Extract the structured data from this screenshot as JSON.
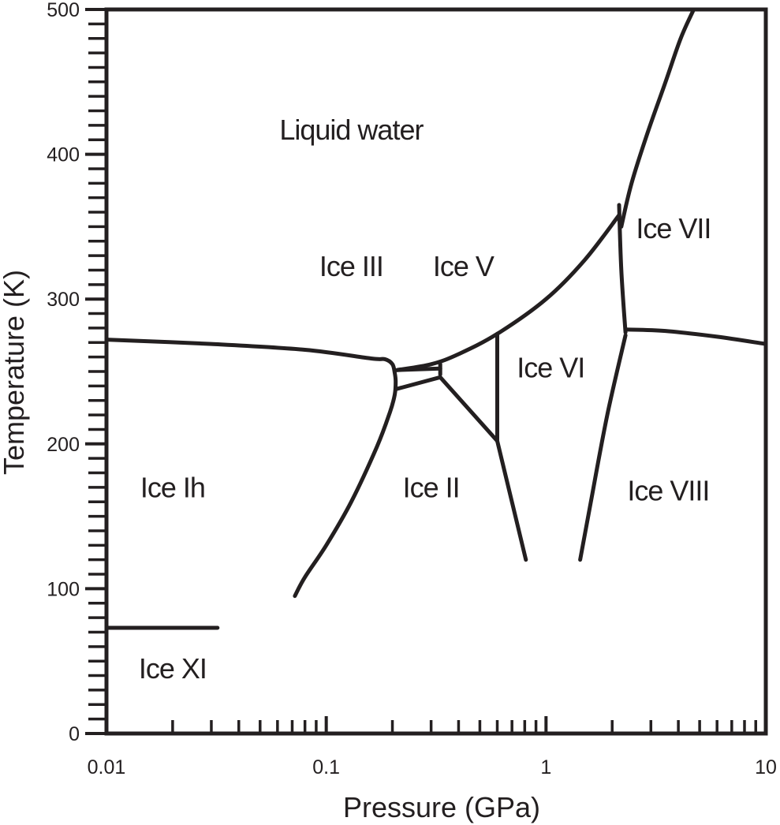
{
  "chart_data": {
    "type": "line",
    "title": "",
    "xlabel": "Pressure (GPa)",
    "ylabel": "Temperature (K)",
    "xscale": "log",
    "xlim": [
      0.01,
      10
    ],
    "ylim": [
      0,
      500
    ],
    "grid": false,
    "x_tick_labels": [
      {
        "value": 0.01,
        "label": "0.01"
      },
      {
        "value": 0.1,
        "label": "0.1"
      },
      {
        "value": 1,
        "label": "1"
      },
      {
        "value": 10,
        "label": "10"
      }
    ],
    "y_tick_labels": [
      {
        "value": 0,
        "label": "0"
      },
      {
        "value": 100,
        "label": "100"
      },
      {
        "value": 200,
        "label": "200"
      },
      {
        "value": 300,
        "label": "300"
      },
      {
        "value": 400,
        "label": "400"
      },
      {
        "value": 500,
        "label": "500"
      }
    ],
    "y_minor_step": 10,
    "regions": [
      {
        "label": "Liquid water",
        "p": 0.13,
        "t": 410
      },
      {
        "label": "Ice III",
        "p": 0.13,
        "t": 316
      },
      {
        "label": "Ice V",
        "p": 0.42,
        "t": 316
      },
      {
        "label": "Ice VII",
        "p": 3.8,
        "t": 342
      },
      {
        "label": "Ice VI",
        "p": 1.05,
        "t": 246
      },
      {
        "label": "Ice Ih",
        "p": 0.02,
        "t": 163
      },
      {
        "label": "Ice II",
        "p": 0.3,
        "t": 163
      },
      {
        "label": "Ice VIII",
        "p": 3.6,
        "t": 161
      },
      {
        "label": "Ice XI",
        "p": 0.02,
        "t": 38
      }
    ],
    "boundaries": [
      {
        "name": "Ih-liquid",
        "points": [
          [
            0.01,
            272
          ],
          [
            0.03,
            269
          ],
          [
            0.08,
            265
          ],
          [
            0.16,
            259
          ],
          [
            0.185,
            258.5
          ],
          [
            0.2,
            255
          ],
          [
            0.205,
            249
          ],
          [
            0.207,
            243
          ],
          [
            0.205,
            234
          ],
          [
            0.195,
            222
          ],
          [
            0.17,
            198
          ],
          [
            0.13,
            160
          ],
          [
            0.1,
            130
          ],
          [
            0.08,
            108
          ],
          [
            0.072,
            95
          ]
        ]
      },
      {
        "name": "liquid-III-V-VI-VII",
        "points": [
          [
            0.21,
            251
          ],
          [
            0.3,
            255
          ],
          [
            0.4,
            262
          ],
          [
            0.6,
            276
          ],
          [
            1.0,
            300
          ],
          [
            1.5,
            327
          ],
          [
            2.15,
            358
          ]
        ]
      },
      {
        "name": "VII-liquid",
        "points": [
          [
            2.2,
            350
          ],
          [
            2.45,
            380
          ],
          [
            2.9,
            415
          ],
          [
            3.5,
            450
          ],
          [
            4.1,
            480
          ],
          [
            4.7,
            500
          ]
        ]
      },
      {
        "name": "VI-VII",
        "points": [
          [
            2.15,
            365
          ],
          [
            2.2,
            320
          ],
          [
            2.3,
            277
          ]
        ]
      },
      {
        "name": "VII-VIII",
        "points": [
          [
            2.3,
            279
          ],
          [
            3.5,
            278
          ],
          [
            6.0,
            274
          ],
          [
            10,
            269
          ]
        ]
      },
      {
        "name": "VIII-VI-II",
        "points": [
          [
            2.3,
            275
          ],
          [
            1.9,
            220
          ],
          [
            1.6,
            160
          ],
          [
            1.43,
            120
          ]
        ]
      },
      {
        "name": "III-upper",
        "points": [
          [
            0.21,
            251
          ],
          [
            0.33,
            252
          ]
        ]
      },
      {
        "name": "III-II",
        "points": [
          [
            0.21,
            238
          ],
          [
            0.33,
            246
          ]
        ]
      },
      {
        "name": "III-V",
        "points": [
          [
            0.33,
            255
          ],
          [
            0.33,
            248
          ]
        ]
      },
      {
        "name": "V-VI",
        "points": [
          [
            0.6,
            276
          ],
          [
            0.6,
            202
          ]
        ]
      },
      {
        "name": "II-V",
        "points": [
          [
            0.33,
            246
          ],
          [
            0.6,
            202
          ]
        ]
      },
      {
        "name": "II-VI",
        "points": [
          [
            0.6,
            202
          ],
          [
            0.81,
            120
          ]
        ]
      },
      {
        "name": "Ih-XI",
        "points": [
          [
            0.01,
            73
          ],
          [
            0.032,
            73
          ]
        ]
      }
    ]
  }
}
